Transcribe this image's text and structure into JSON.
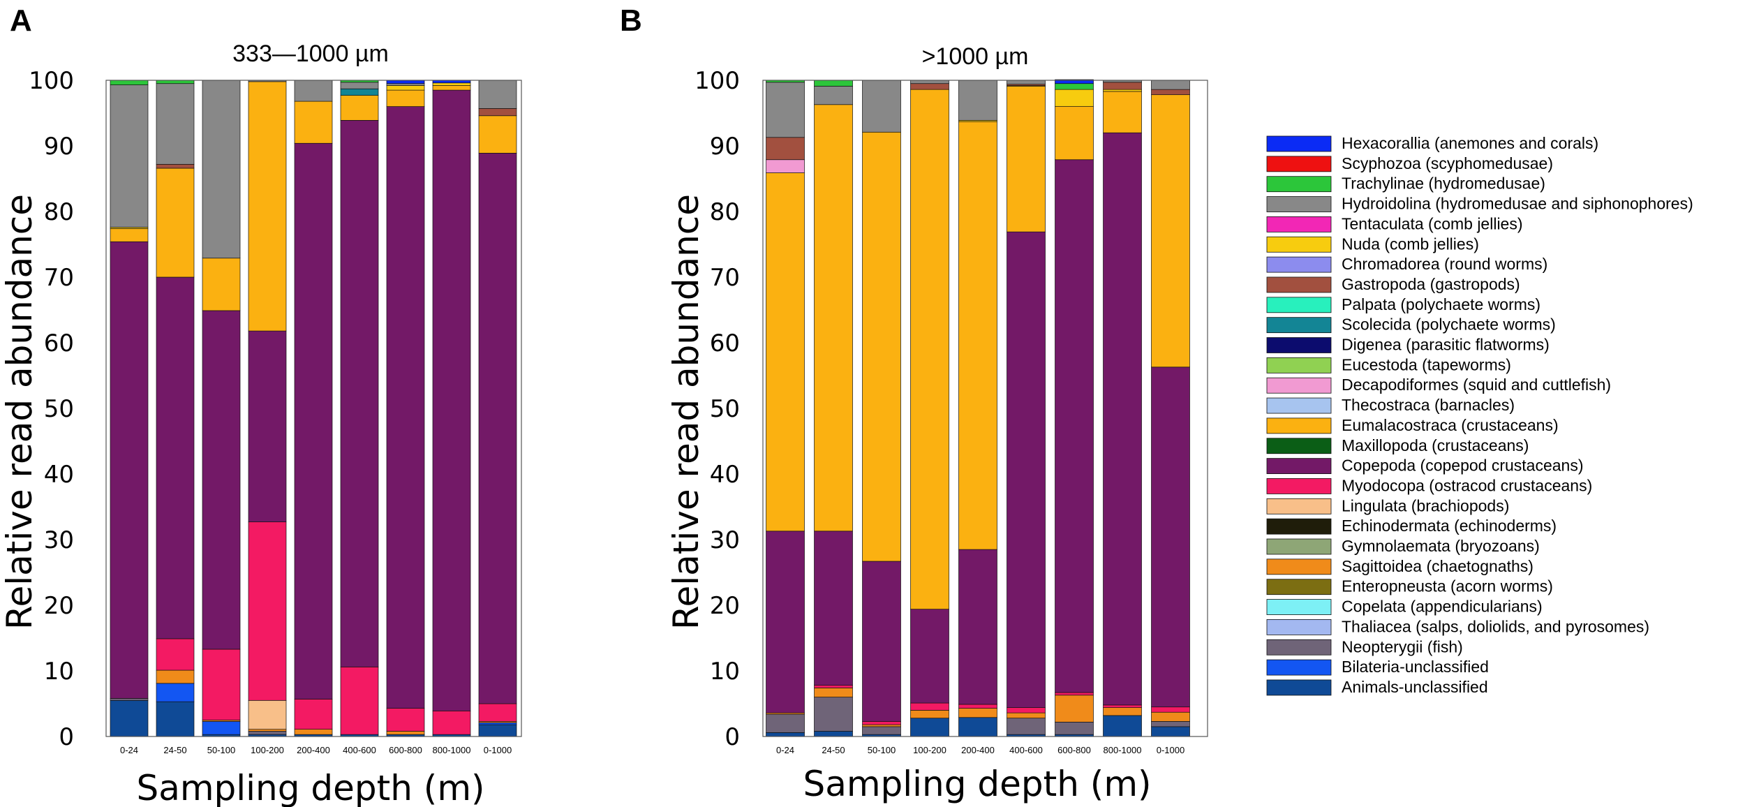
{
  "legend": {
    "entries": [
      {
        "name": "Hexacorallia (anemones and corals)",
        "color": "#0b2bf5"
      },
      {
        "name": "Scyphozoa (scyphomedusae)",
        "color": "#ee1111"
      },
      {
        "name": "Trachylinae (hydromedusae)",
        "color": "#2cc63a"
      },
      {
        "name": "Hydroidolina (hydromedusae and siphonophores)",
        "color": "#888888"
      },
      {
        "name": "Tentaculata (comb jellies)",
        "color": "#f227b5"
      },
      {
        "name": "Nuda (comb jellies)",
        "color": "#f7cc0f"
      },
      {
        "name": "Chromadorea (round worms)",
        "color": "#8c8cee"
      },
      {
        "name": "Gastropoda (gastropods)",
        "color": "#a2503f"
      },
      {
        "name": "Palpata (polychaete worms)",
        "color": "#28f0bd"
      },
      {
        "name": "Scolecida (polychaete worms)",
        "color": "#138595"
      },
      {
        "name": "Digenea (parasitic flatworms)",
        "color": "#0c0c6e"
      },
      {
        "name": "Eucestoda (tapeworms)",
        "color": "#90d152"
      },
      {
        "name": "Decapodiformes (squid and cuttlefish)",
        "color": "#f19ad2"
      },
      {
        "name": "Thecostraca (barnacles)",
        "color": "#a7c4ef"
      },
      {
        "name": "Eumalacostraca (crustaceans)",
        "color": "#fbb111"
      },
      {
        "name": "Maxillopoda (crustaceans)",
        "color": "#0b5e16"
      },
      {
        "name": "Copepoda (copepod crustaceans)",
        "color": "#731967"
      },
      {
        "name": "Myodocopa (ostracod crustaceans)",
        "color": "#f31a63"
      },
      {
        "name": "Lingulata (brachiopods)",
        "color": "#f8bf89"
      },
      {
        "name": "Echinodermata (echinoderms)",
        "color": "#1f1d0a"
      },
      {
        "name": "Gymnolaemata (bryozoans)",
        "color": "#8ea676"
      },
      {
        "name": "Sagittoidea (chaetognaths)",
        "color": "#f08b1a"
      },
      {
        "name": "Enteropneusta (acorn worms)",
        "color": "#7c6e12"
      },
      {
        "name": "Copelata (appendicularians)",
        "color": "#7df0f5"
      },
      {
        "name": "Thaliacea (salps, doliolids, and pyrosomes)",
        "color": "#a3b8f0"
      },
      {
        "name": "Neopterygii (fish)",
        "color": "#6f6478"
      },
      {
        "name": "Bilateria-unclassified",
        "color": "#1356f2"
      },
      {
        "name": "Animals-unclassified",
        "color": "#0f4a96"
      }
    ]
  },
  "chart_data": [
    {
      "type": "bar",
      "stacked": true,
      "panel": "A",
      "title": "333—1000 µm",
      "xlabel": "Sampling depth (m)",
      "ylabel": "Relative read abundance",
      "ylim": [
        0,
        100
      ],
      "yticks": [
        0,
        10,
        20,
        30,
        40,
        50,
        60,
        70,
        80,
        90,
        100
      ],
      "categories": [
        "0-24",
        "24-50",
        "50-100",
        "100-200",
        "200-400",
        "400-600",
        "600-800",
        "800-1000",
        "0-1000"
      ],
      "series": [
        {
          "name": "Animals-unclassified",
          "values": [
            5.5,
            5.3,
            0.3,
            0.3,
            0.3,
            0.3,
            0.3,
            0.3,
            1.8
          ]
        },
        {
          "name": "Bilateria-unclassified",
          "values": [
            0,
            2.8,
            2.0,
            0,
            0,
            0,
            0,
            0,
            0.3
          ]
        },
        {
          "name": "Neopterygii (fish)",
          "values": [
            0.3,
            0,
            0,
            0.5,
            0,
            0,
            0,
            0,
            0
          ]
        },
        {
          "name": "Sagittoidea (chaetognaths)",
          "values": [
            0,
            2.0,
            0.2,
            0.3,
            0.8,
            0,
            0.5,
            0,
            0.2
          ]
        },
        {
          "name": "Lingulata (brachiopods)",
          "values": [
            0,
            0,
            0,
            4.4,
            0,
            0,
            0,
            0,
            0
          ]
        },
        {
          "name": "Myodocopa (ostracod crustaceans)",
          "values": [
            0,
            4.8,
            10.8,
            27.2,
            4.6,
            10.3,
            3.5,
            3.6,
            2.7
          ]
        },
        {
          "name": "Copepoda (copepod crustaceans)",
          "values": [
            69.6,
            55.1,
            51.6,
            29.1,
            84.7,
            83.3,
            91.7,
            94.6,
            83.9
          ]
        },
        {
          "name": "Eumalacostraca (crustaceans)",
          "values": [
            2.0,
            16.6,
            8.0,
            38.0,
            6.4,
            3.8,
            2.5,
            0.7,
            5.7
          ]
        },
        {
          "name": "Nuda (comb jellies)",
          "values": [
            0.2,
            0,
            0,
            0,
            0,
            0,
            0.7,
            0.4,
            0
          ]
        },
        {
          "name": "Gastropoda (gastropods)",
          "values": [
            0,
            0.6,
            0,
            0,
            0,
            0,
            0,
            0,
            1.1
          ]
        },
        {
          "name": "Scolecida (polychaete worms)",
          "values": [
            0,
            0,
            0,
            0,
            0,
            1.0,
            0,
            0,
            0
          ]
        },
        {
          "name": "Hydroidolina (hydromedusae and siphonophores)",
          "values": [
            21.7,
            12.3,
            27.1,
            0.2,
            3.2,
            1.0,
            0.3,
            0,
            4.3
          ]
        },
        {
          "name": "Hexacorallia (anemones and corals)",
          "values": [
            0,
            0,
            0,
            0,
            0,
            0,
            0.5,
            0.4,
            0
          ]
        },
        {
          "name": "Trachylinae (hydromedusae)",
          "values": [
            0.7,
            0.5,
            0,
            0,
            0,
            0.3,
            0,
            0,
            0
          ]
        }
      ]
    },
    {
      "type": "bar",
      "stacked": true,
      "panel": "B",
      "title": ">1000 µm",
      "xlabel": "Sampling depth (m)",
      "ylabel": "Relative read abundance",
      "ylim": [
        0,
        100
      ],
      "yticks": [
        0,
        10,
        20,
        30,
        40,
        50,
        60,
        70,
        80,
        90,
        100
      ],
      "categories": [
        "0-24",
        "24-50",
        "50-100",
        "100-200",
        "200-400",
        "400-600",
        "600-800",
        "800-1000",
        "0-1000"
      ],
      "series": [
        {
          "name": "Animals-unclassified",
          "values": [
            0.6,
            0.8,
            0.3,
            2.8,
            2.9,
            0.3,
            0.3,
            3.2,
            1.5
          ]
        },
        {
          "name": "Neopterygii (fish)",
          "values": [
            2.8,
            5.2,
            1.2,
            0,
            0,
            2.5,
            1.9,
            0,
            0.8
          ]
        },
        {
          "name": "Sagittoidea (chaetognaths)",
          "values": [
            0.2,
            1.4,
            0.3,
            1.2,
            1.4,
            0.8,
            4.1,
            1.2,
            1.4
          ]
        },
        {
          "name": "Myodocopa (ostracod crustaceans)",
          "values": [
            0,
            0.4,
            0.5,
            1.1,
            0.6,
            0.8,
            0.4,
            0.4,
            0.8
          ]
        },
        {
          "name": "Copepoda (copepod crustaceans)",
          "values": [
            27.7,
            23.5,
            24.4,
            14.3,
            23.6,
            72.5,
            81.2,
            87.2,
            51.8
          ]
        },
        {
          "name": "Eumalacostraca (crustaceans)",
          "values": [
            54.6,
            65.0,
            65.4,
            79.2,
            65.2,
            22.2,
            8.1,
            6.3,
            41.5
          ]
        },
        {
          "name": "Nuda (comb jellies)",
          "values": [
            0,
            0,
            0,
            0,
            0.2,
            0.1,
            2.6,
            0.3,
            0
          ]
        },
        {
          "name": "Decapodiformes (squid and cuttlefish)",
          "values": [
            2.0,
            0,
            0,
            0,
            0,
            0,
            0,
            0,
            0
          ]
        },
        {
          "name": "Gastropoda (gastropods)",
          "values": [
            3.4,
            0,
            0,
            0.9,
            0,
            0.2,
            0,
            1.1,
            0.8
          ]
        },
        {
          "name": "Hydroidolina (hydromedusae and siphonophores)",
          "values": [
            8.4,
            2.8,
            7.9,
            0.5,
            6.1,
            0.6,
            0,
            0.3,
            1.4
          ]
        },
        {
          "name": "Trachylinae (hydromedusae)",
          "values": [
            0.3,
            0.9,
            0,
            0,
            0,
            0,
            0.9,
            0,
            0
          ]
        },
        {
          "name": "Hexacorallia (anemones and corals)",
          "values": [
            0,
            0,
            0,
            0,
            0,
            0,
            0.6,
            0,
            0
          ]
        }
      ]
    }
  ]
}
